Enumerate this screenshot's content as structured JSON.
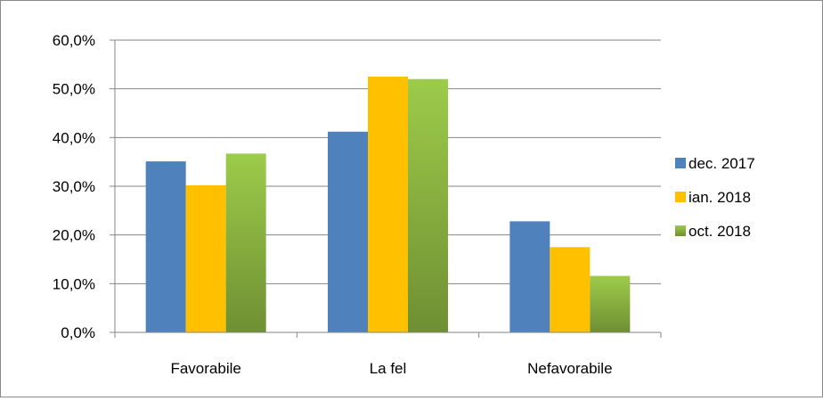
{
  "chart_data": {
    "type": "bar",
    "title": "",
    "xlabel": "",
    "ylabel": "",
    "categories": [
      "Favorabile",
      "La fel",
      "Nefavorabile"
    ],
    "series": [
      {
        "name": "dec. 2017",
        "color": "#4f81bd",
        "values": [
          35.1,
          41.2,
          22.8
        ]
      },
      {
        "name": "ian. 2018",
        "color": "#ffc000",
        "values": [
          30.2,
          52.5,
          17.5
        ]
      },
      {
        "name": "oct. 2018",
        "color": "#8db63c",
        "values": [
          36.7,
          52.0,
          11.6
        ]
      }
    ],
    "ylim": [
      0,
      60
    ],
    "yticks": [
      0,
      10,
      20,
      30,
      40,
      50,
      60
    ],
    "ytick_labels": [
      "0,0%",
      "10,0%",
      "20,0%",
      "30,0%",
      "40,0%",
      "50,0%",
      "60,0%"
    ],
    "grid": true,
    "legend_position": "right"
  }
}
